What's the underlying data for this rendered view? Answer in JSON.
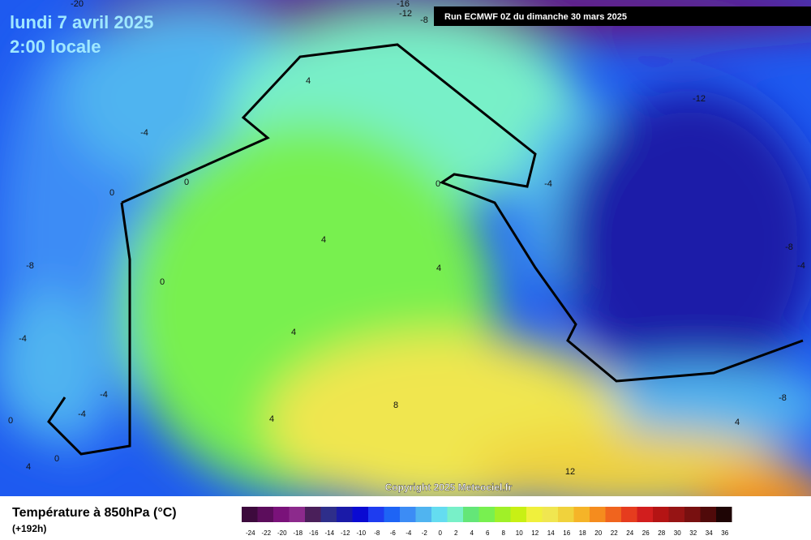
{
  "header": {
    "date": "lundi 7 avril 2025",
    "time": "2:00 locale",
    "run": "Run ECMWF 0Z du dimanche 30 mars 2025"
  },
  "copyright": "Copyright 2025 Meteociel.fr",
  "legend": {
    "title": "Température à 850hPa (°C)",
    "lead": "(+192h)",
    "ticks": [
      -24,
      -22,
      -20,
      -18,
      -16,
      -14,
      -12,
      -10,
      -8,
      -6,
      -4,
      -2,
      0,
      2,
      4,
      6,
      8,
      10,
      12,
      14,
      16,
      18,
      20,
      22,
      24,
      26,
      28,
      30,
      32,
      34,
      36
    ],
    "colors": [
      "#3d0a3d",
      "#5c0d5c",
      "#7a127a",
      "#8c2a8c",
      "#4a1f5a",
      "#2e2e8a",
      "#1a1aa8",
      "#0a0ad2",
      "#1e3cf0",
      "#1e64f5",
      "#3c8cf5",
      "#50b4f0",
      "#64dcf0",
      "#78f0c8",
      "#64e678",
      "#78f050",
      "#a0f028",
      "#c8f014",
      "#f0f03c",
      "#f0e650",
      "#f0d23c",
      "#f5b428",
      "#f58c1e",
      "#f0641e",
      "#e63c1e",
      "#d21e1e",
      "#b41414",
      "#961414",
      "#781010",
      "#500a0a",
      "#1e0505"
    ]
  },
  "map": {
    "contour_labels": [
      -20,
      -16,
      -12,
      -8,
      4,
      -12,
      -4,
      0,
      0,
      0,
      -4,
      4,
      -8,
      4,
      0,
      -8,
      -4,
      -4,
      4,
      -4,
      -4,
      8,
      4,
      0,
      -8,
      4,
      0,
      4,
      12
    ]
  }
}
